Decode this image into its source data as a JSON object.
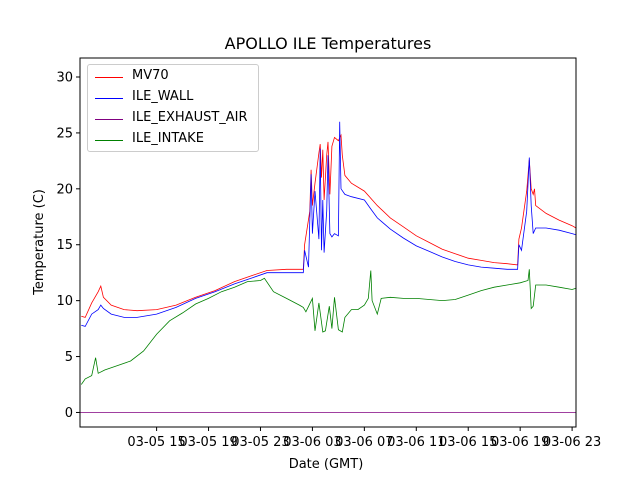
{
  "chart_data": {
    "type": "line",
    "title": "APOLLO ILE Temperatures",
    "xlabel": "Date (GMT)",
    "ylabel": "Temperature (C)",
    "x_ticks": [
      "03-05 15",
      "03-05 19",
      "03-05 23",
      "03-06 03",
      "03-06 07",
      "03-06 11",
      "03-06 15",
      "03-06 19",
      "03-06 23"
    ],
    "x_tick_hours": [
      15,
      19,
      23,
      27,
      31,
      35,
      39,
      43,
      47
    ],
    "xlim_hours": [
      9.1,
      47.3
    ],
    "ylim": [
      -1.3,
      31.7
    ],
    "y_ticks": [
      0,
      5,
      10,
      15,
      20,
      25,
      30
    ],
    "grid": false,
    "legend_position": "top-left",
    "series": [
      {
        "name": "MV70",
        "color": "#ff0000",
        "points": [
          [
            9.2,
            8.6
          ],
          [
            9.5,
            8.5
          ],
          [
            10.0,
            9.8
          ],
          [
            10.5,
            10.8
          ],
          [
            10.7,
            11.3
          ],
          [
            10.9,
            10.3
          ],
          [
            11.5,
            9.6
          ],
          [
            12.5,
            9.2
          ],
          [
            13.5,
            9.1
          ],
          [
            15.0,
            9.2
          ],
          [
            16.5,
            9.6
          ],
          [
            18.0,
            10.3
          ],
          [
            19.5,
            10.9
          ],
          [
            21.0,
            11.7
          ],
          [
            22.5,
            12.3
          ],
          [
            23.5,
            12.7
          ],
          [
            25.0,
            12.8
          ],
          [
            26.3,
            12.8
          ],
          [
            26.4,
            15.0
          ],
          [
            26.8,
            18.0
          ],
          [
            26.9,
            21.7
          ],
          [
            27.0,
            18.5
          ],
          [
            27.2,
            20.5
          ],
          [
            27.5,
            23.2
          ],
          [
            27.6,
            24.0
          ],
          [
            27.7,
            21.0
          ],
          [
            27.8,
            23.5
          ],
          [
            27.9,
            19.0
          ],
          [
            28.1,
            23.0
          ],
          [
            28.2,
            24.2
          ],
          [
            28.35,
            19.5
          ],
          [
            28.5,
            23.8
          ],
          [
            28.7,
            24.6
          ],
          [
            29.0,
            24.3
          ],
          [
            29.2,
            24.8
          ],
          [
            29.3,
            23.0
          ],
          [
            29.5,
            21.2
          ],
          [
            30.0,
            20.5
          ],
          [
            31.0,
            19.8
          ],
          [
            32.0,
            18.5
          ],
          [
            33.0,
            17.4
          ],
          [
            34.0,
            16.6
          ],
          [
            35.0,
            15.8
          ],
          [
            36.0,
            15.2
          ],
          [
            37.0,
            14.6
          ],
          [
            38.0,
            14.2
          ],
          [
            39.0,
            13.8
          ],
          [
            40.0,
            13.6
          ],
          [
            41.0,
            13.4
          ],
          [
            42.0,
            13.3
          ],
          [
            42.8,
            13.2
          ],
          [
            42.9,
            15.5
          ],
          [
            43.1,
            16.5
          ],
          [
            43.5,
            19.8
          ],
          [
            43.7,
            22.6
          ],
          [
            43.85,
            20.0
          ],
          [
            44.0,
            19.5
          ],
          [
            44.1,
            20.0
          ],
          [
            44.2,
            18.5
          ],
          [
            45.0,
            17.8
          ],
          [
            46.0,
            17.2
          ],
          [
            47.0,
            16.7
          ],
          [
            47.3,
            16.5
          ]
        ]
      },
      {
        "name": "ILE_WALL",
        "color": "#0000ff",
        "points": [
          [
            9.2,
            7.8
          ],
          [
            9.5,
            7.7
          ],
          [
            10.0,
            8.8
          ],
          [
            10.5,
            9.2
          ],
          [
            10.7,
            9.6
          ],
          [
            10.9,
            9.3
          ],
          [
            11.5,
            8.8
          ],
          [
            12.5,
            8.5
          ],
          [
            13.5,
            8.5
          ],
          [
            15.0,
            8.8
          ],
          [
            16.5,
            9.4
          ],
          [
            18.0,
            10.2
          ],
          [
            19.5,
            10.8
          ],
          [
            21.0,
            11.5
          ],
          [
            22.5,
            12.1
          ],
          [
            23.5,
            12.5
          ],
          [
            25.0,
            12.5
          ],
          [
            26.3,
            12.5
          ],
          [
            26.4,
            14.5
          ],
          [
            26.7,
            13.0
          ],
          [
            26.9,
            21.3
          ],
          [
            27.0,
            16.0
          ],
          [
            27.2,
            19.8
          ],
          [
            27.5,
            15.5
          ],
          [
            27.6,
            23.6
          ],
          [
            27.7,
            14.5
          ],
          [
            27.8,
            19.0
          ],
          [
            27.9,
            14.3
          ],
          [
            28.1,
            18.0
          ],
          [
            28.2,
            23.0
          ],
          [
            28.35,
            16.0
          ],
          [
            28.5,
            15.7
          ],
          [
            28.7,
            16.0
          ],
          [
            29.0,
            15.8
          ],
          [
            29.1,
            26.0
          ],
          [
            29.2,
            20.0
          ],
          [
            29.5,
            19.5
          ],
          [
            30.0,
            19.3
          ],
          [
            31.0,
            19.0
          ],
          [
            31.5,
            18.2
          ],
          [
            32.0,
            17.4
          ],
          [
            33.0,
            16.4
          ],
          [
            34.0,
            15.6
          ],
          [
            35.0,
            14.9
          ],
          [
            36.0,
            14.4
          ],
          [
            37.0,
            13.9
          ],
          [
            38.0,
            13.5
          ],
          [
            39.0,
            13.2
          ],
          [
            40.0,
            13.0
          ],
          [
            41.0,
            12.9
          ],
          [
            42.0,
            12.8
          ],
          [
            42.8,
            12.8
          ],
          [
            42.9,
            15.0
          ],
          [
            43.1,
            14.5
          ],
          [
            43.5,
            18.0
          ],
          [
            43.7,
            22.8
          ],
          [
            43.85,
            18.5
          ],
          [
            44.0,
            16.0
          ],
          [
            44.2,
            16.5
          ],
          [
            45.0,
            16.5
          ],
          [
            46.0,
            16.3
          ],
          [
            47.0,
            16.0
          ],
          [
            47.3,
            15.9
          ]
        ]
      },
      {
        "name": "ILE_EXHAUST_AIR",
        "color": "#800080",
        "points": [
          [
            9.1,
            0.0
          ],
          [
            47.3,
            0.0
          ]
        ]
      },
      {
        "name": "ILE_INTAKE",
        "color": "#008000",
        "points": [
          [
            9.2,
            2.5
          ],
          [
            9.5,
            3.0
          ],
          [
            10.0,
            3.3
          ],
          [
            10.3,
            4.9
          ],
          [
            10.5,
            3.5
          ],
          [
            11.0,
            3.8
          ],
          [
            12.0,
            4.2
          ],
          [
            13.0,
            4.6
          ],
          [
            14.0,
            5.5
          ],
          [
            15.0,
            7.0
          ],
          [
            16.0,
            8.2
          ],
          [
            17.0,
            8.9
          ],
          [
            18.0,
            9.7
          ],
          [
            19.0,
            10.2
          ],
          [
            20.0,
            10.8
          ],
          [
            21.0,
            11.2
          ],
          [
            22.0,
            11.7
          ],
          [
            23.0,
            11.8
          ],
          [
            23.3,
            12.0
          ],
          [
            24.0,
            10.8
          ],
          [
            25.0,
            10.2
          ],
          [
            26.0,
            9.6
          ],
          [
            26.3,
            9.4
          ],
          [
            26.5,
            9.0
          ],
          [
            27.0,
            10.2
          ],
          [
            27.2,
            7.3
          ],
          [
            27.5,
            9.8
          ],
          [
            27.8,
            7.2
          ],
          [
            28.0,
            7.3
          ],
          [
            28.3,
            9.5
          ],
          [
            28.5,
            7.5
          ],
          [
            28.7,
            10.3
          ],
          [
            29.0,
            7.4
          ],
          [
            29.3,
            7.2
          ],
          [
            29.5,
            8.5
          ],
          [
            30.0,
            9.2
          ],
          [
            30.5,
            9.2
          ],
          [
            31.0,
            9.6
          ],
          [
            31.3,
            10.2
          ],
          [
            31.5,
            12.7
          ],
          [
            31.6,
            10.0
          ],
          [
            32.0,
            8.8
          ],
          [
            32.3,
            10.2
          ],
          [
            33.0,
            10.3
          ],
          [
            34.0,
            10.2
          ],
          [
            35.0,
            10.2
          ],
          [
            36.0,
            10.1
          ],
          [
            37.0,
            10.0
          ],
          [
            38.0,
            10.1
          ],
          [
            39.0,
            10.5
          ],
          [
            40.0,
            10.9
          ],
          [
            41.0,
            11.2
          ],
          [
            42.0,
            11.4
          ],
          [
            43.0,
            11.6
          ],
          [
            43.6,
            11.8
          ],
          [
            43.7,
            12.8
          ],
          [
            43.85,
            9.3
          ],
          [
            44.0,
            9.5
          ],
          [
            44.2,
            11.4
          ],
          [
            45.0,
            11.4
          ],
          [
            46.0,
            11.2
          ],
          [
            47.0,
            11.0
          ],
          [
            47.3,
            11.1
          ]
        ]
      }
    ]
  }
}
